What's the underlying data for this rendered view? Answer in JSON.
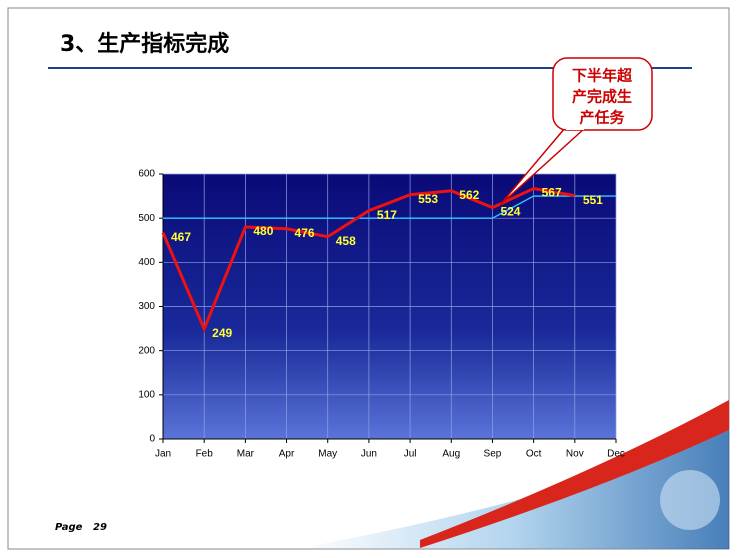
{
  "title": "3、生产指标完成",
  "footer": {
    "page_label": "Page",
    "page_number": "29"
  },
  "callout": {
    "lines": [
      "下半年超",
      "产完成生",
      "产任务"
    ]
  },
  "chart_data": {
    "type": "line",
    "categories": [
      "Jan",
      "Feb",
      "Mar",
      "Apr",
      "May",
      "Jun",
      "Jul",
      "Aug",
      "Sep",
      "Oct",
      "Nov",
      "Dec"
    ],
    "series": [
      {
        "color": "#33ccff",
        "values": [
          500,
          500,
          500,
          500,
          500,
          500,
          500,
          500,
          500,
          550,
          550,
          550
        ]
      },
      {
        "color": "#ee1111",
        "values": [
          467,
          249,
          480,
          476,
          458,
          517,
          553,
          562,
          524,
          567,
          551,
          null
        ],
        "labels": true
      }
    ],
    "ylim": [
      0,
      600
    ],
    "yticks": [
      0,
      100,
      200,
      300,
      400,
      500,
      600
    ],
    "grid": true
  }
}
